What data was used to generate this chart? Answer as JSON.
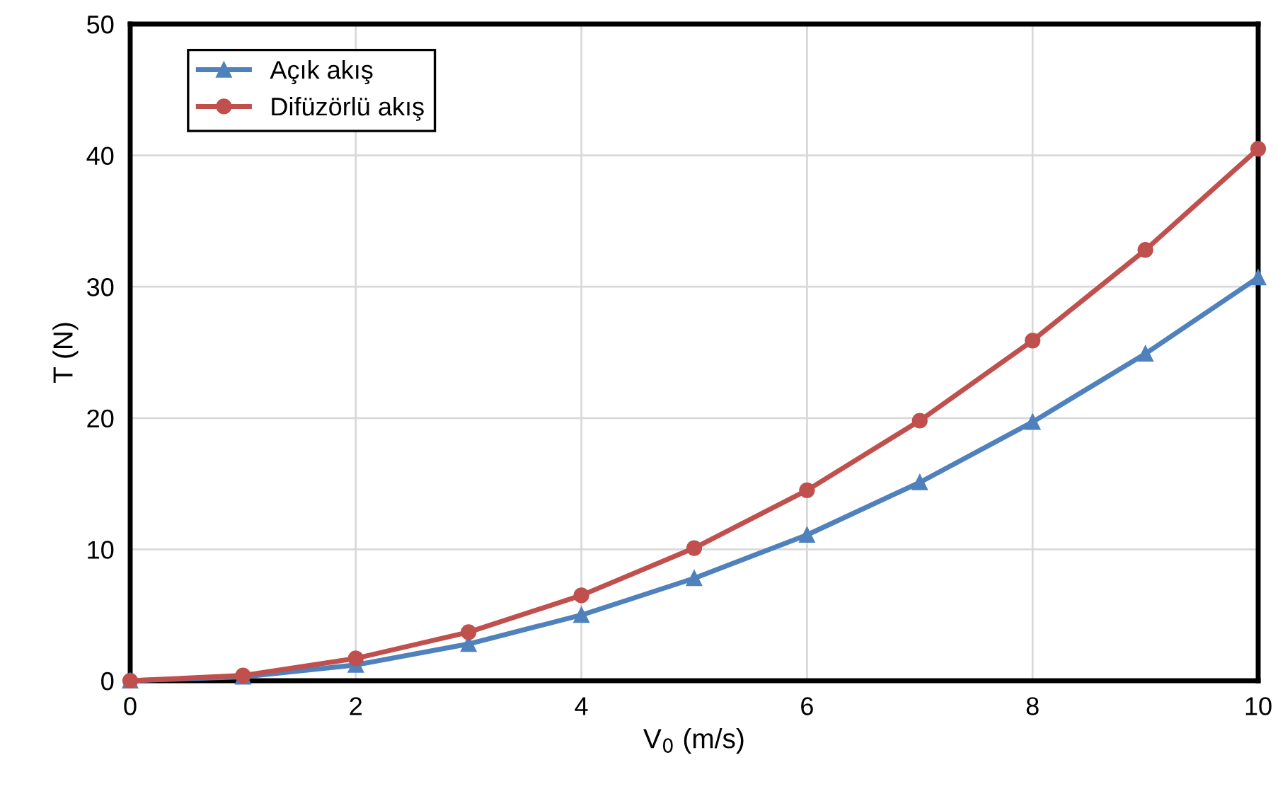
{
  "chart_data": {
    "type": "line",
    "xlabel": "V$_{0}$ (m/s)",
    "ylabel": "T (N)",
    "x": [
      0,
      1,
      2,
      3,
      4,
      5,
      6,
      7,
      8,
      9,
      10
    ],
    "series": [
      {
        "name": "Açık akış",
        "color": "#4f81bd",
        "marker": "triangle",
        "values": [
          0,
          0.3,
          1.2,
          2.8,
          5.0,
          7.8,
          11.1,
          15.1,
          19.7,
          24.9,
          30.7
        ]
      },
      {
        "name": "Difüzörlü akış",
        "color": "#c0504d",
        "marker": "circle",
        "values": [
          0,
          0.4,
          1.7,
          3.7,
          6.5,
          10.1,
          14.5,
          19.8,
          25.9,
          32.8,
          40.5
        ]
      }
    ],
    "xlim": [
      0,
      10
    ],
    "xticks": [
      0,
      2,
      4,
      6,
      8,
      10
    ],
    "ylim": [
      0,
      50
    ],
    "yticks": [
      0,
      10,
      20,
      30,
      40,
      50
    ],
    "grid": true,
    "legend": "top left",
    "line_style": "solid"
  }
}
